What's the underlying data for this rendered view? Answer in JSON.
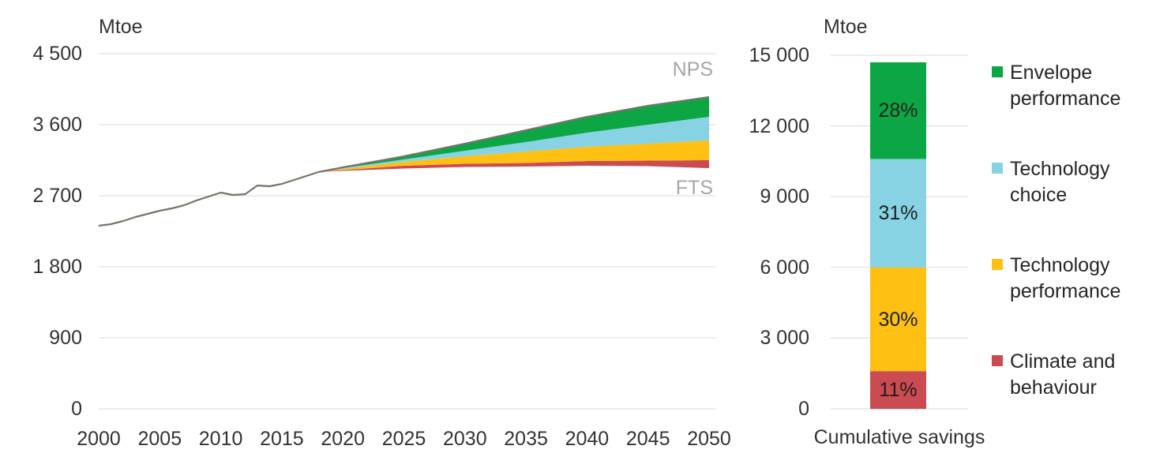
{
  "colors": {
    "background": "#ffffff",
    "grid": "#d9d9d9",
    "axis_text": "#333333",
    "scenario_label": "#a6a6a6",
    "history_line": "#75756a",
    "green": "#0ca644",
    "light_blue": "#87d3e3",
    "yellow": "#fdc013",
    "red": "#cb4b52",
    "percent_text": "#1f1f1f"
  },
  "labels": {
    "left_title": "Mtoe",
    "right_title": "Mtoe",
    "nps": "NPS",
    "fts": "FTS",
    "x_category": "Cumulative savings"
  },
  "chart_data": [
    {
      "type": "area",
      "title": "Mtoe",
      "xlim": [
        2000,
        2050
      ],
      "ylim": [
        0,
        4500
      ],
      "grid": "horizontal",
      "x_ticks": [
        {
          "label": "2000",
          "value": 2000
        },
        {
          "label": "2005",
          "value": 2005
        },
        {
          "label": "2010",
          "value": 2010
        },
        {
          "label": "2015",
          "value": 2015
        },
        {
          "label": "2020",
          "value": 2020
        },
        {
          "label": "2025",
          "value": 2025
        },
        {
          "label": "2030",
          "value": 2030
        },
        {
          "label": "2035",
          "value": 2035
        },
        {
          "label": "2040",
          "value": 2040
        },
        {
          "label": "2045",
          "value": 2045
        },
        {
          "label": "2050",
          "value": 2050
        }
      ],
      "y_ticks": [
        {
          "label": "0",
          "value": 0
        },
        {
          "label": "900",
          "value": 900
        },
        {
          "label": "1 800",
          "value": 1800
        },
        {
          "label": "2 700",
          "value": 2700
        },
        {
          "label": "3 600",
          "value": 3600
        },
        {
          "label": "4 500",
          "value": 4500
        }
      ],
      "history": {
        "name": "Historical",
        "years": [
          2000,
          2001,
          2002,
          2003,
          2004,
          2005,
          2006,
          2007,
          2008,
          2009,
          2010,
          2011,
          2012,
          2013,
          2014,
          2015,
          2016,
          2017,
          2018
        ],
        "values": [
          2320,
          2340,
          2380,
          2430,
          2470,
          2510,
          2540,
          2580,
          2640,
          2690,
          2740,
          2710,
          2720,
          2830,
          2820,
          2850,
          2900,
          2950,
          3000
        ]
      },
      "fan_years": [
        2018,
        2020,
        2025,
        2030,
        2035,
        2040,
        2045,
        2050
      ],
      "fts_line": {
        "name": "FTS",
        "values": [
          3000,
          3015,
          3045,
          3065,
          3070,
          3080,
          3075,
          3050
        ]
      },
      "nps_line": {
        "name": "NPS",
        "values": [
          3000,
          3060,
          3200,
          3360,
          3530,
          3700,
          3840,
          3950
        ]
      },
      "bands": [
        {
          "name": "Climate and behaviour",
          "color_key": "red",
          "upper": [
            3000,
            3025,
            3080,
            3105,
            3115,
            3140,
            3145,
            3150
          ]
        },
        {
          "name": "Technology performance",
          "color_key": "yellow",
          "upper": [
            3000,
            3040,
            3130,
            3200,
            3260,
            3320,
            3360,
            3400
          ]
        },
        {
          "name": "Technology choice",
          "color_key": "light_blue",
          "upper": [
            3000,
            3050,
            3160,
            3270,
            3380,
            3500,
            3600,
            3700
          ]
        },
        {
          "name": "Envelope performance",
          "color_key": "green",
          "upper": [
            3000,
            3060,
            3200,
            3360,
            3530,
            3700,
            3840,
            3950
          ]
        }
      ]
    },
    {
      "type": "bar",
      "stacked": true,
      "title": "Mtoe",
      "category": "Cumulative savings",
      "ylim": [
        0,
        15000
      ],
      "y_ticks": [
        {
          "label": "0",
          "value": 0
        },
        {
          "label": "3 000",
          "value": 3000
        },
        {
          "label": "6 000",
          "value": 6000
        },
        {
          "label": "9 000",
          "value": 9000
        },
        {
          "label": "12 000",
          "value": 12000
        },
        {
          "label": "15 000",
          "value": 15000
        }
      ],
      "total_value": 14700,
      "segments": [
        {
          "label": "Climate and behaviour",
          "value": 1600,
          "percent_label": "11%",
          "color_key": "red"
        },
        {
          "label": "Technology performance",
          "value": 4400,
          "percent_label": "30%",
          "color_key": "yellow"
        },
        {
          "label": "Technology choice",
          "value": 4600,
          "percent_label": "31%",
          "color_key": "light_blue"
        },
        {
          "label": "Envelope performance",
          "value": 4100,
          "percent_label": "28%",
          "color_key": "green"
        }
      ]
    }
  ],
  "legend": {
    "items": [
      {
        "label": "Envelope performance",
        "color_key": "green"
      },
      {
        "label": "Technology choice",
        "color_key": "light_blue"
      },
      {
        "label": "Technology performance",
        "color_key": "yellow"
      },
      {
        "label": "Climate and behaviour",
        "color_key": "red"
      }
    ]
  }
}
